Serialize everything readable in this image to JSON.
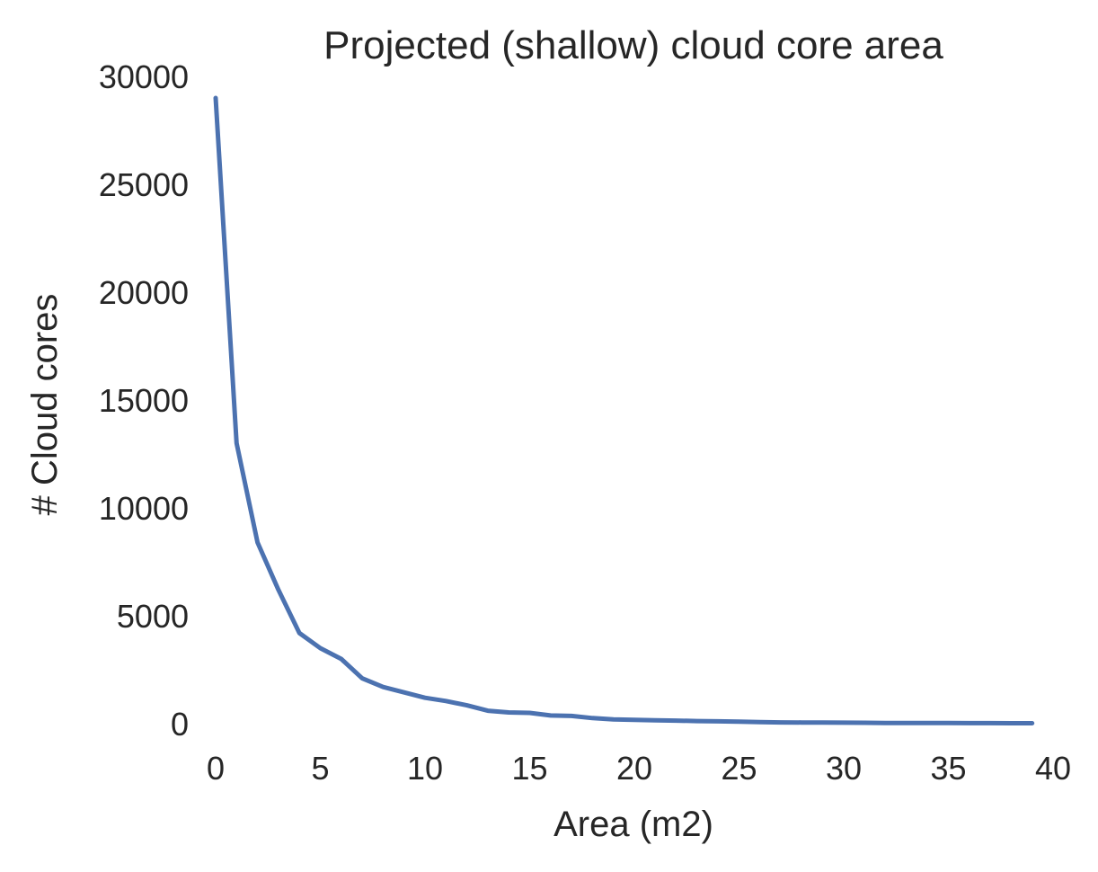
{
  "chart_data": {
    "type": "line",
    "title": "Projected (shallow) cloud core area",
    "xlabel": "Area (m2)",
    "ylabel": "# Cloud cores",
    "xlim": [
      0,
      40
    ],
    "ylim": [
      0,
      30000
    ],
    "xticks": [
      "0",
      "5",
      "10",
      "15",
      "20",
      "25",
      "30",
      "35",
      "40"
    ],
    "yticks": [
      "0",
      "5000",
      "10000",
      "15000",
      "20000",
      "25000",
      "30000"
    ],
    "grid": false,
    "line_color": "#4c72b0",
    "series": [
      {
        "x": [
          0,
          1,
          2,
          3,
          4,
          5,
          6,
          7,
          8,
          9,
          10,
          11,
          12,
          13,
          14,
          15,
          16,
          17,
          18,
          19,
          20,
          21,
          22,
          23,
          24,
          25,
          26,
          27,
          28,
          29,
          30,
          31,
          32,
          33,
          34,
          35,
          36,
          37,
          38,
          39
        ],
        "values": [
          29000,
          13000,
          8400,
          6200,
          4200,
          3500,
          3000,
          2100,
          1700,
          1450,
          1200,
          1050,
          850,
          600,
          520,
          500,
          380,
          360,
          260,
          200,
          180,
          160,
          140,
          120,
          110,
          90,
          70,
          60,
          55,
          50,
          45,
          40,
          35,
          33,
          30,
          28,
          26,
          24,
          22,
          20
        ]
      }
    ]
  }
}
